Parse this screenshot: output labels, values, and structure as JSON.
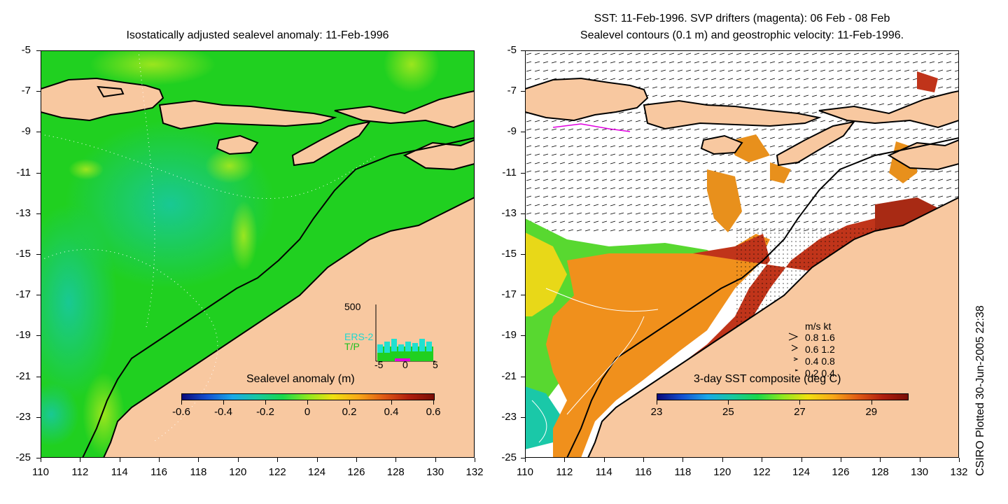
{
  "left_panel": {
    "title": "Isostatically adjusted sealevel anomaly: 11-Feb-1996",
    "colorbar": {
      "label": "Sealevel anomaly (m)",
      "ticks": [
        "-0.6",
        "-0.4",
        "-0.2",
        "0",
        "0.2",
        "0.4",
        "0.6"
      ],
      "colors": [
        "#0a0a7a",
        "#1450d0",
        "#1aa8e8",
        "#18c8a0",
        "#1ad84a",
        "#8ee81e",
        "#f0e010",
        "#f8a818",
        "#e05a14",
        "#b01e0e",
        "#7a0e06"
      ]
    },
    "inset": {
      "ymax_label": "500",
      "series_labels": [
        "ERS-2",
        "T/P"
      ],
      "x_ticks": [
        "-5",
        "0",
        "5"
      ]
    }
  },
  "right_panel": {
    "title_line1": "SST: 11-Feb-1996. SVP drifters (magenta): 06 Feb - 08 Feb",
    "title_line2": "Sealevel contours (0.1 m) and geostrophic velocity: 11-Feb-1996.",
    "colorbar": {
      "label": "3-day SST composite (deg C)",
      "ticks": [
        "23",
        "25",
        "27",
        "29"
      ],
      "colors": [
        "#0a0a7a",
        "#1450d0",
        "#1aa8e8",
        "#18c8a0",
        "#1ad84a",
        "#8ee81e",
        "#f0e010",
        "#f8a818",
        "#e05a14",
        "#b01e0e",
        "#7a0e06"
      ]
    },
    "velocity_legend": {
      "header": "m/s  kt",
      "rows": [
        "0.8  1.6",
        "0.6  1.2",
        "0.4  0.8",
        "0.2  0.4"
      ]
    }
  },
  "axes": {
    "y_ticks": [
      "-5",
      "-7",
      "-9",
      "-11",
      "-13",
      "-15",
      "-17",
      "-19",
      "-21",
      "-23",
      "-25"
    ],
    "x_ticks": [
      "110",
      "112",
      "114",
      "116",
      "118",
      "120",
      "122",
      "124",
      "126",
      "128",
      "130",
      "132"
    ]
  },
  "colors": {
    "land": "#f8c8a0",
    "ocean_left": "#20d020",
    "coast": "#000000",
    "drifter": "#e000e0",
    "sst_warm": "#c8321a"
  },
  "stamp": "CSIRO Plotted 30-Jun-2005 22:38"
}
